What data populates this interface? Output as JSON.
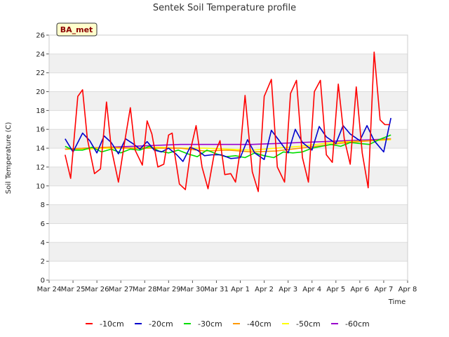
{
  "chart_data": {
    "type": "line",
    "title": "Sentek Soil Temperature profile",
    "xlabel": "Time",
    "ylabel": "Soil Temperature (C)",
    "badge": "BA_met",
    "ylim": [
      0,
      26
    ],
    "yticks": [
      0,
      2,
      4,
      6,
      8,
      10,
      12,
      14,
      16,
      18,
      20,
      22,
      24,
      26
    ],
    "xlim": [
      0,
      15
    ],
    "xticks": [
      "Mar 24",
      "Mar 25",
      "Mar 26",
      "Mar 27",
      "Mar 28",
      "Mar 29",
      "Mar 30",
      "Mar 31",
      "Apr 1",
      "Apr 2",
      "Apr 3",
      "Apr 4",
      "Apr 5",
      "Apr 6",
      "Apr 7",
      "Apr 8"
    ],
    "grid": true,
    "legend_position": "bottom",
    "series": [
      {
        "name": "-10cm",
        "color": "#ff0000",
        "x": [
          0.67,
          0.9,
          1.2,
          1.4,
          1.6,
          1.9,
          2.15,
          2.4,
          2.6,
          2.9,
          3.15,
          3.4,
          3.6,
          3.9,
          4.1,
          4.3,
          4.55,
          4.8,
          5.0,
          5.15,
          5.25,
          5.45,
          5.7,
          5.95,
          6.15,
          6.4,
          6.65,
          6.9,
          7.15,
          7.35,
          7.6,
          7.8,
          8.0,
          8.2,
          8.5,
          8.75,
          9.0,
          9.3,
          9.55,
          9.85,
          10.1,
          10.35,
          10.6,
          10.85,
          11.1,
          11.35,
          11.6,
          11.85,
          12.1,
          12.35,
          12.6,
          12.85,
          13.1,
          13.35,
          13.6,
          13.85,
          14.05,
          14.25
        ],
        "values": [
          13.3,
          10.8,
          19.5,
          20.2,
          15.0,
          11.3,
          11.8,
          18.9,
          14.0,
          10.4,
          14.5,
          18.3,
          13.8,
          12.2,
          16.9,
          15.5,
          12.0,
          12.3,
          15.4,
          15.6,
          13.5,
          10.2,
          9.6,
          14.2,
          16.4,
          12.0,
          9.7,
          13.3,
          14.8,
          11.2,
          11.3,
          10.4,
          13.8,
          19.6,
          11.5,
          9.4,
          19.5,
          21.3,
          12.0,
          10.4,
          19.8,
          21.2,
          13.0,
          10.4,
          20.0,
          21.2,
          13.3,
          12.5,
          20.8,
          15.0,
          12.3,
          20.5,
          13.5,
          9.8,
          24.2,
          17.0,
          16.5,
          16.5
        ]
      },
      {
        "name": "-20cm",
        "color": "#0000cc",
        "x": [
          0.67,
          1.0,
          1.4,
          1.7,
          2.0,
          2.3,
          2.6,
          2.9,
          3.2,
          3.5,
          3.8,
          4.1,
          4.4,
          4.7,
          5.0,
          5.3,
          5.6,
          5.9,
          6.2,
          6.5,
          6.8,
          7.2,
          7.6,
          8.0,
          8.3,
          8.6,
          9.0,
          9.3,
          9.6,
          10.0,
          10.3,
          10.6,
          11.0,
          11.3,
          11.6,
          12.0,
          12.3,
          12.6,
          13.0,
          13.3,
          13.6,
          14.0,
          14.3
        ],
        "values": [
          15.0,
          13.6,
          15.6,
          14.8,
          13.5,
          15.3,
          14.6,
          13.4,
          15.0,
          14.5,
          13.9,
          14.7,
          13.8,
          13.6,
          14.0,
          13.4,
          12.6,
          14.1,
          13.8,
          13.2,
          13.3,
          13.3,
          12.9,
          13.0,
          14.9,
          13.5,
          12.8,
          15.9,
          14.9,
          13.5,
          16.0,
          14.6,
          13.8,
          16.3,
          15.2,
          14.5,
          16.4,
          15.5,
          14.8,
          16.4,
          14.8,
          13.6,
          17.2
        ]
      },
      {
        "name": "-30cm",
        "color": "#00dd00",
        "x": [
          0.67,
          1.0,
          1.4,
          1.8,
          2.2,
          2.6,
          3.0,
          3.4,
          3.8,
          4.2,
          4.6,
          5.0,
          5.4,
          5.8,
          6.2,
          6.6,
          7.0,
          7.4,
          7.8,
          8.2,
          8.6,
          9.0,
          9.4,
          9.8,
          10.2,
          10.6,
          11.0,
          11.4,
          11.8,
          12.2,
          12.6,
          13.0,
          13.4,
          13.8,
          14.3
        ],
        "values": [
          14.2,
          13.8,
          13.8,
          14.1,
          13.6,
          13.9,
          13.5,
          13.9,
          13.8,
          14.2,
          13.7,
          13.5,
          13.8,
          13.4,
          13.1,
          13.8,
          13.4,
          13.1,
          13.2,
          13.0,
          13.5,
          13.2,
          13.0,
          13.6,
          13.5,
          13.6,
          14.0,
          14.2,
          14.4,
          14.2,
          14.6,
          14.5,
          14.4,
          14.9,
          15.4
        ]
      },
      {
        "name": "-40cm",
        "color": "#ff9900",
        "x": [
          0.67,
          1.5,
          2.5,
          3.5,
          4.5,
          5.5,
          6.5,
          7.5,
          8.5,
          9.5,
          10.5,
          11.5,
          12.5,
          13.5,
          14.3
        ],
        "values": [
          13.9,
          14.0,
          14.1,
          14.0,
          14.0,
          14.0,
          13.7,
          13.8,
          13.6,
          13.7,
          14.0,
          14.3,
          14.6,
          14.8,
          15.0
        ]
      },
      {
        "name": "-50cm",
        "color": "#ffff00",
        "x": [
          0.67,
          1.5,
          2.5,
          3.5,
          4.5,
          5.5,
          6.5,
          7.5,
          8.5,
          9.5,
          10.5,
          11.5,
          12.5,
          13.5,
          14.3
        ],
        "values": [
          13.9,
          13.9,
          14.0,
          14.0,
          14.1,
          14.0,
          14.0,
          13.9,
          13.8,
          14.0,
          14.2,
          14.5,
          14.7,
          14.8,
          14.9
        ]
      },
      {
        "name": "-60cm",
        "color": "#9900cc",
        "x": [
          0.67,
          1.5,
          2.5,
          3.5,
          4.5,
          5.5,
          6.5,
          7.5,
          8.5,
          9.5,
          10.5,
          11.5,
          12.5,
          13.5,
          14.3
        ],
        "values": [
          13.9,
          14.0,
          14.1,
          14.2,
          14.3,
          14.4,
          14.4,
          14.4,
          14.4,
          14.5,
          14.6,
          14.7,
          14.8,
          14.9,
          15.0
        ]
      }
    ]
  }
}
